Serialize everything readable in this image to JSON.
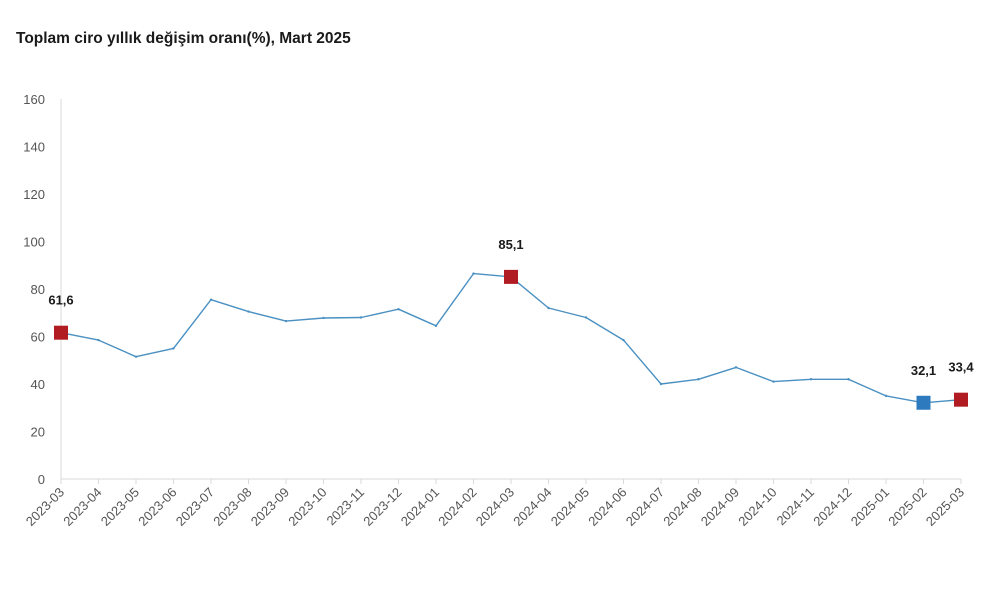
{
  "chart_data": {
    "type": "line",
    "title": "Toplam ciro yıllık değişim oranı(%), Mart 2025",
    "xlabel": "",
    "ylabel": "",
    "ylim": [
      0,
      160
    ],
    "yticks": [
      0,
      20,
      40,
      60,
      80,
      100,
      120,
      140,
      160
    ],
    "grid": false,
    "line_color": "#4a90c2",
    "categories": [
      "2023-03",
      "2023-04",
      "2023-05",
      "2023-06",
      "2023-07",
      "2023-08",
      "2023-09",
      "2023-10",
      "2023-11",
      "2023-12",
      "2024-01",
      "2024-02",
      "2024-03",
      "2024-04",
      "2024-05",
      "2024-06",
      "2024-07",
      "2024-08",
      "2024-09",
      "2024-10",
      "2024-11",
      "2024-12",
      "2025-01",
      "2025-02",
      "2025-03"
    ],
    "series": [
      {
        "values": [
          61.6,
          58.5,
          51.5,
          55.0,
          75.5,
          70.5,
          66.5,
          67.8,
          68.0,
          71.5,
          64.5,
          86.5,
          85.1,
          72.0,
          68.0,
          58.5,
          40.0,
          42.0,
          47.0,
          41.0,
          42.0,
          42.0,
          35.0,
          32.1,
          33.4
        ]
      }
    ],
    "highlights": [
      {
        "category": "2023-03",
        "value": 61.6,
        "label": "61,6",
        "color": "#b01c22"
      },
      {
        "category": "2024-03",
        "value": 85.1,
        "label": "85,1",
        "color": "#b01c22"
      },
      {
        "category": "2025-02",
        "value": 32.1,
        "label": "32,1",
        "color": "#2e7abf"
      },
      {
        "category": "2025-03",
        "value": 33.4,
        "label": "33,4",
        "color": "#b01c22"
      }
    ]
  }
}
